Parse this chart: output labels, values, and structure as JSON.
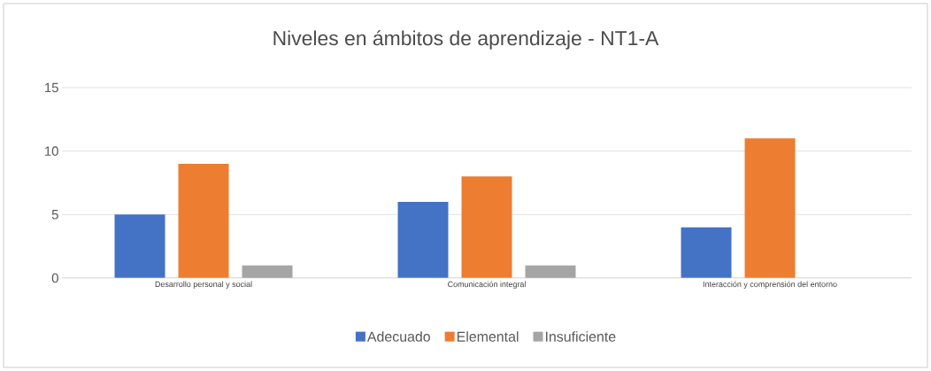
{
  "chart_data": {
    "type": "bar",
    "title": "Niveles en ámbitos de aprendizaje - NT1-A",
    "categories": [
      "Desarrollo personal y social",
      "Comunicación integral",
      "Interacción y comprensión del entorno"
    ],
    "series": [
      {
        "name": "Adecuado",
        "color": "#4472c4",
        "values": [
          5,
          6,
          4
        ]
      },
      {
        "name": "Elemental",
        "color": "#ed7d31",
        "values": [
          9,
          8,
          11
        ]
      },
      {
        "name": "Insuficiente",
        "color": "#a5a5a5",
        "values": [
          1,
          1,
          0
        ]
      }
    ],
    "ylim": [
      0,
      15
    ],
    "yticks": [
      0,
      5,
      10,
      15
    ],
    "grid": "y",
    "legend": "bottom"
  }
}
